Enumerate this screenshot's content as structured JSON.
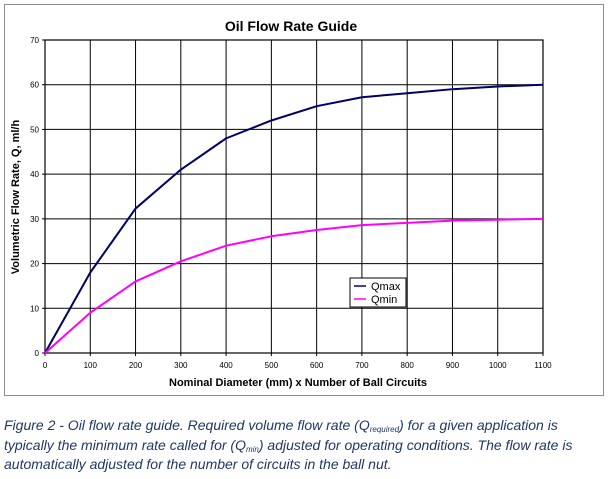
{
  "chart_data": {
    "type": "line",
    "title": "Oil Flow Rate Guide",
    "xlabel": "Nominal Diameter (mm) x Number of Ball Circuits",
    "ylabel": "Volumetric Flow Rate, Q, ml/h",
    "x": [
      0,
      100,
      200,
      300,
      400,
      500,
      600,
      700,
      800,
      900,
      1000,
      1100
    ],
    "xlim": [
      0,
      1100
    ],
    "ylim": [
      0,
      70
    ],
    "xticks": [
      "0",
      "100",
      "200",
      "300",
      "400",
      "500",
      "600",
      "700",
      "800",
      "900",
      "1000",
      "1100"
    ],
    "yticks": [
      "0",
      "10",
      "20",
      "30",
      "40",
      "50",
      "60",
      "70"
    ],
    "grid": true,
    "legend_position": "bottom-right",
    "series": [
      {
        "name": "Qmax",
        "color": "#000066",
        "values": [
          0,
          18,
          32.3,
          41,
          48,
          52,
          55.2,
          57.2,
          58.1,
          59,
          59.6,
          60
        ]
      },
      {
        "name": "Qmin",
        "color": "#ff00ff",
        "values": [
          0,
          9,
          16,
          20.5,
          24,
          26.1,
          27.5,
          28.6,
          29.1,
          29.6,
          29.8,
          30
        ]
      }
    ]
  },
  "caption": {
    "part1": "Figure 2 - Oil flow rate guide.  Required volume flow rate (Q",
    "sub1": "required",
    "part2": ") for a given application is typically the minimum rate called for (Q",
    "sub2": "min",
    "part3": ") adjusted for operating conditions.  The flow rate is automatically adjusted for the number of circuits in the ball nut."
  }
}
